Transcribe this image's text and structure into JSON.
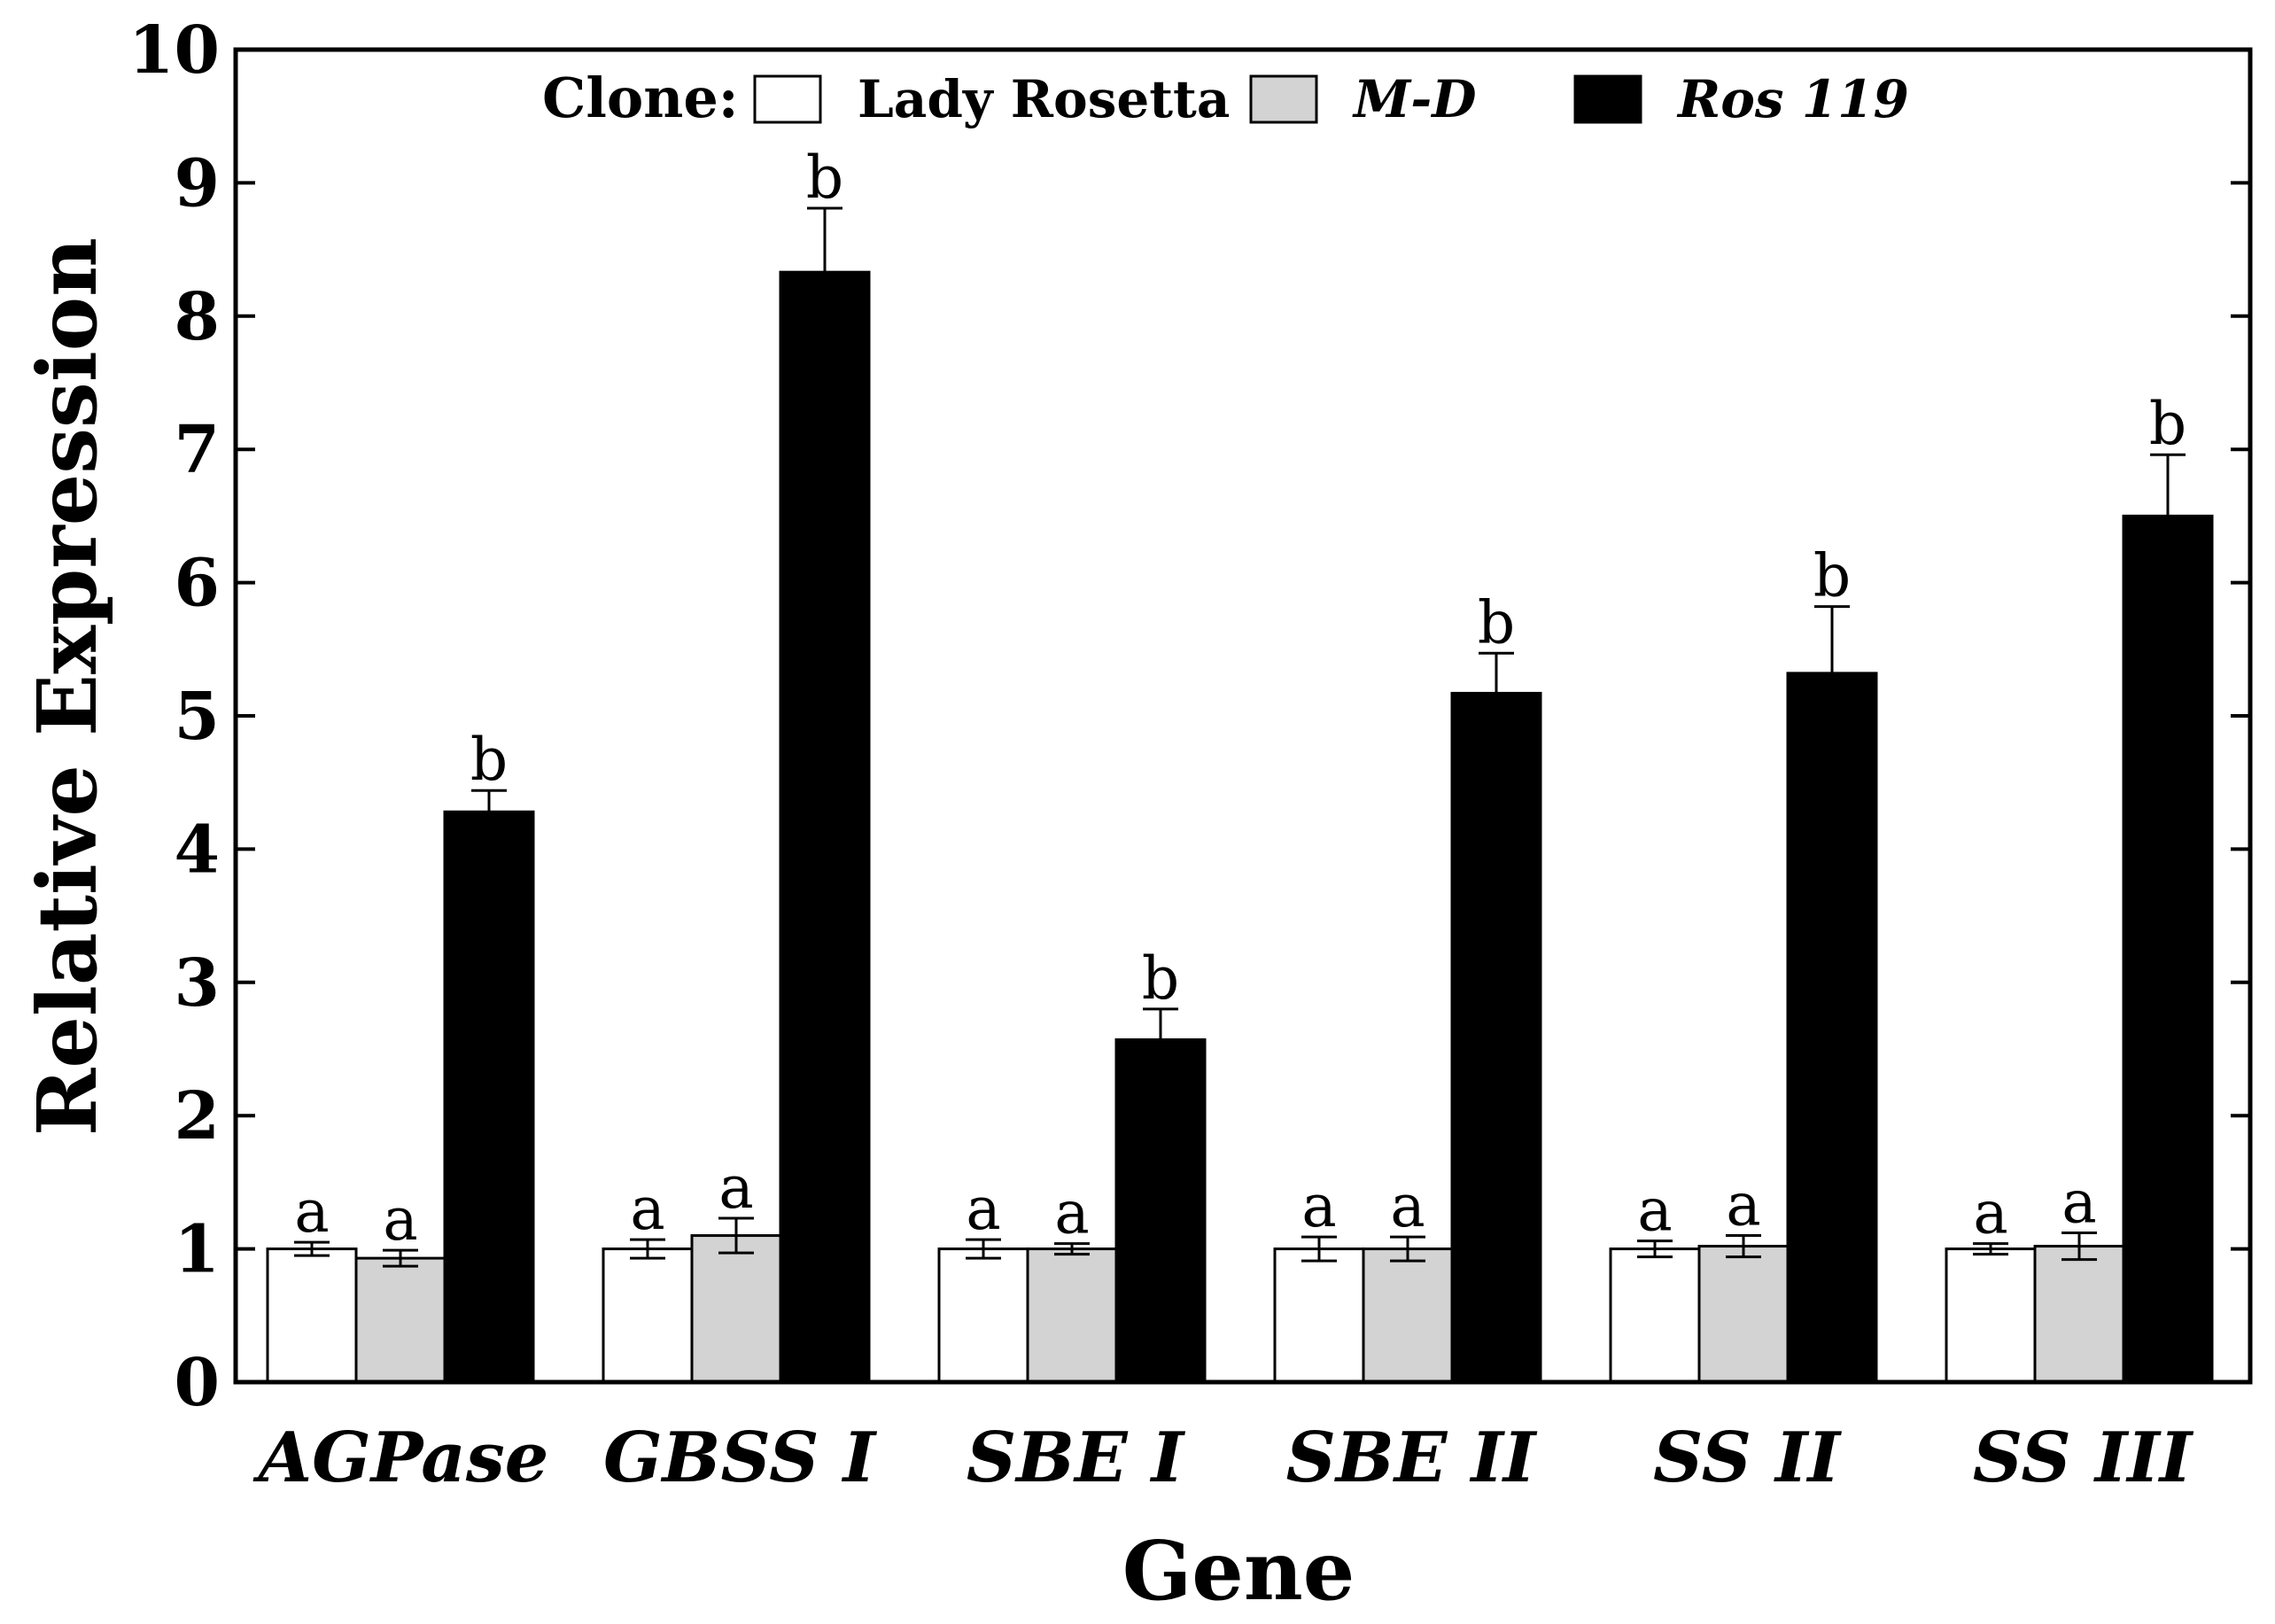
{
  "chart_data": {
    "type": "bar",
    "title": "",
    "xlabel": "Gene",
    "ylabel": "Relative Expression",
    "ylim": [
      0,
      10
    ],
    "yticks": [
      "0",
      "1",
      "2",
      "3",
      "4",
      "5",
      "6",
      "7",
      "8",
      "9",
      "10"
    ],
    "categories": [
      "AGPase",
      "GBSS I",
      "SBE I",
      "SBE II",
      "SS II",
      "SS III"
    ],
    "legend": {
      "title": "Clone:",
      "placement": "top-center",
      "entries": [
        "Lady Rosetta",
        "M-D",
        "Ros 119"
      ]
    },
    "series": [
      {
        "name": "Lady Rosetta",
        "color": "#ffffff",
        "values": [
          1.0,
          1.0,
          1.0,
          1.0,
          1.0,
          1.0
        ],
        "errors": [
          0.05,
          0.07,
          0.07,
          0.09,
          0.06,
          0.04
        ],
        "letters": [
          "a",
          "a",
          "a",
          "a",
          "a",
          "a"
        ]
      },
      {
        "name": "M-D",
        "color": "#d3d3d3",
        "values": [
          0.93,
          1.1,
          1.0,
          1.0,
          1.02,
          1.02
        ],
        "errors": [
          0.06,
          0.13,
          0.04,
          0.09,
          0.08,
          0.1
        ],
        "letters": [
          "a",
          "a",
          "a",
          "a",
          "a",
          "a"
        ]
      },
      {
        "name": "Ros 119",
        "color": "#000000",
        "values": [
          4.28,
          8.33,
          2.57,
          5.17,
          5.32,
          6.5
        ],
        "errors": [
          0.16,
          0.48,
          0.23,
          0.3,
          0.5,
          0.46
        ],
        "letters": [
          "b",
          "b",
          "b",
          "b",
          "b",
          "b"
        ]
      }
    ]
  }
}
